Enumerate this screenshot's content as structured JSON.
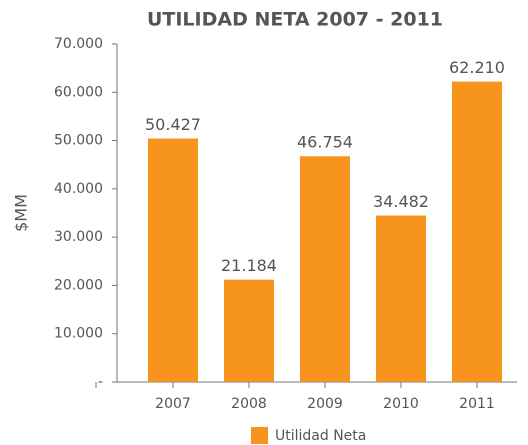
{
  "chart_data": {
    "type": "bar",
    "title": "UTILIDAD NETA 2007 - 2011",
    "ylabel": "$MM",
    "categories": [
      "2007",
      "2008",
      "2009",
      "2010",
      "2011"
    ],
    "series": [
      {
        "name": "Utilidad Neta",
        "color": "#f7941d",
        "values": [
          50427,
          21184,
          46754,
          34482,
          62210
        ],
        "value_labels": [
          "50.427",
          "21.184",
          "46.754",
          "34.482",
          "62.210"
        ]
      }
    ],
    "ylim": [
      0,
      70000
    ],
    "yticks": [
      {
        "value": 0,
        "label": "-"
      },
      {
        "value": 10000,
        "label": "10.000"
      },
      {
        "value": 20000,
        "label": "20.000"
      },
      {
        "value": 30000,
        "label": "30.000"
      },
      {
        "value": 40000,
        "label": "40.000"
      },
      {
        "value": 50000,
        "label": "50.000"
      },
      {
        "value": 60000,
        "label": "60.000"
      },
      {
        "value": 70000,
        "label": "70.000"
      }
    ],
    "grid": false,
    "legend": "bottom"
  }
}
